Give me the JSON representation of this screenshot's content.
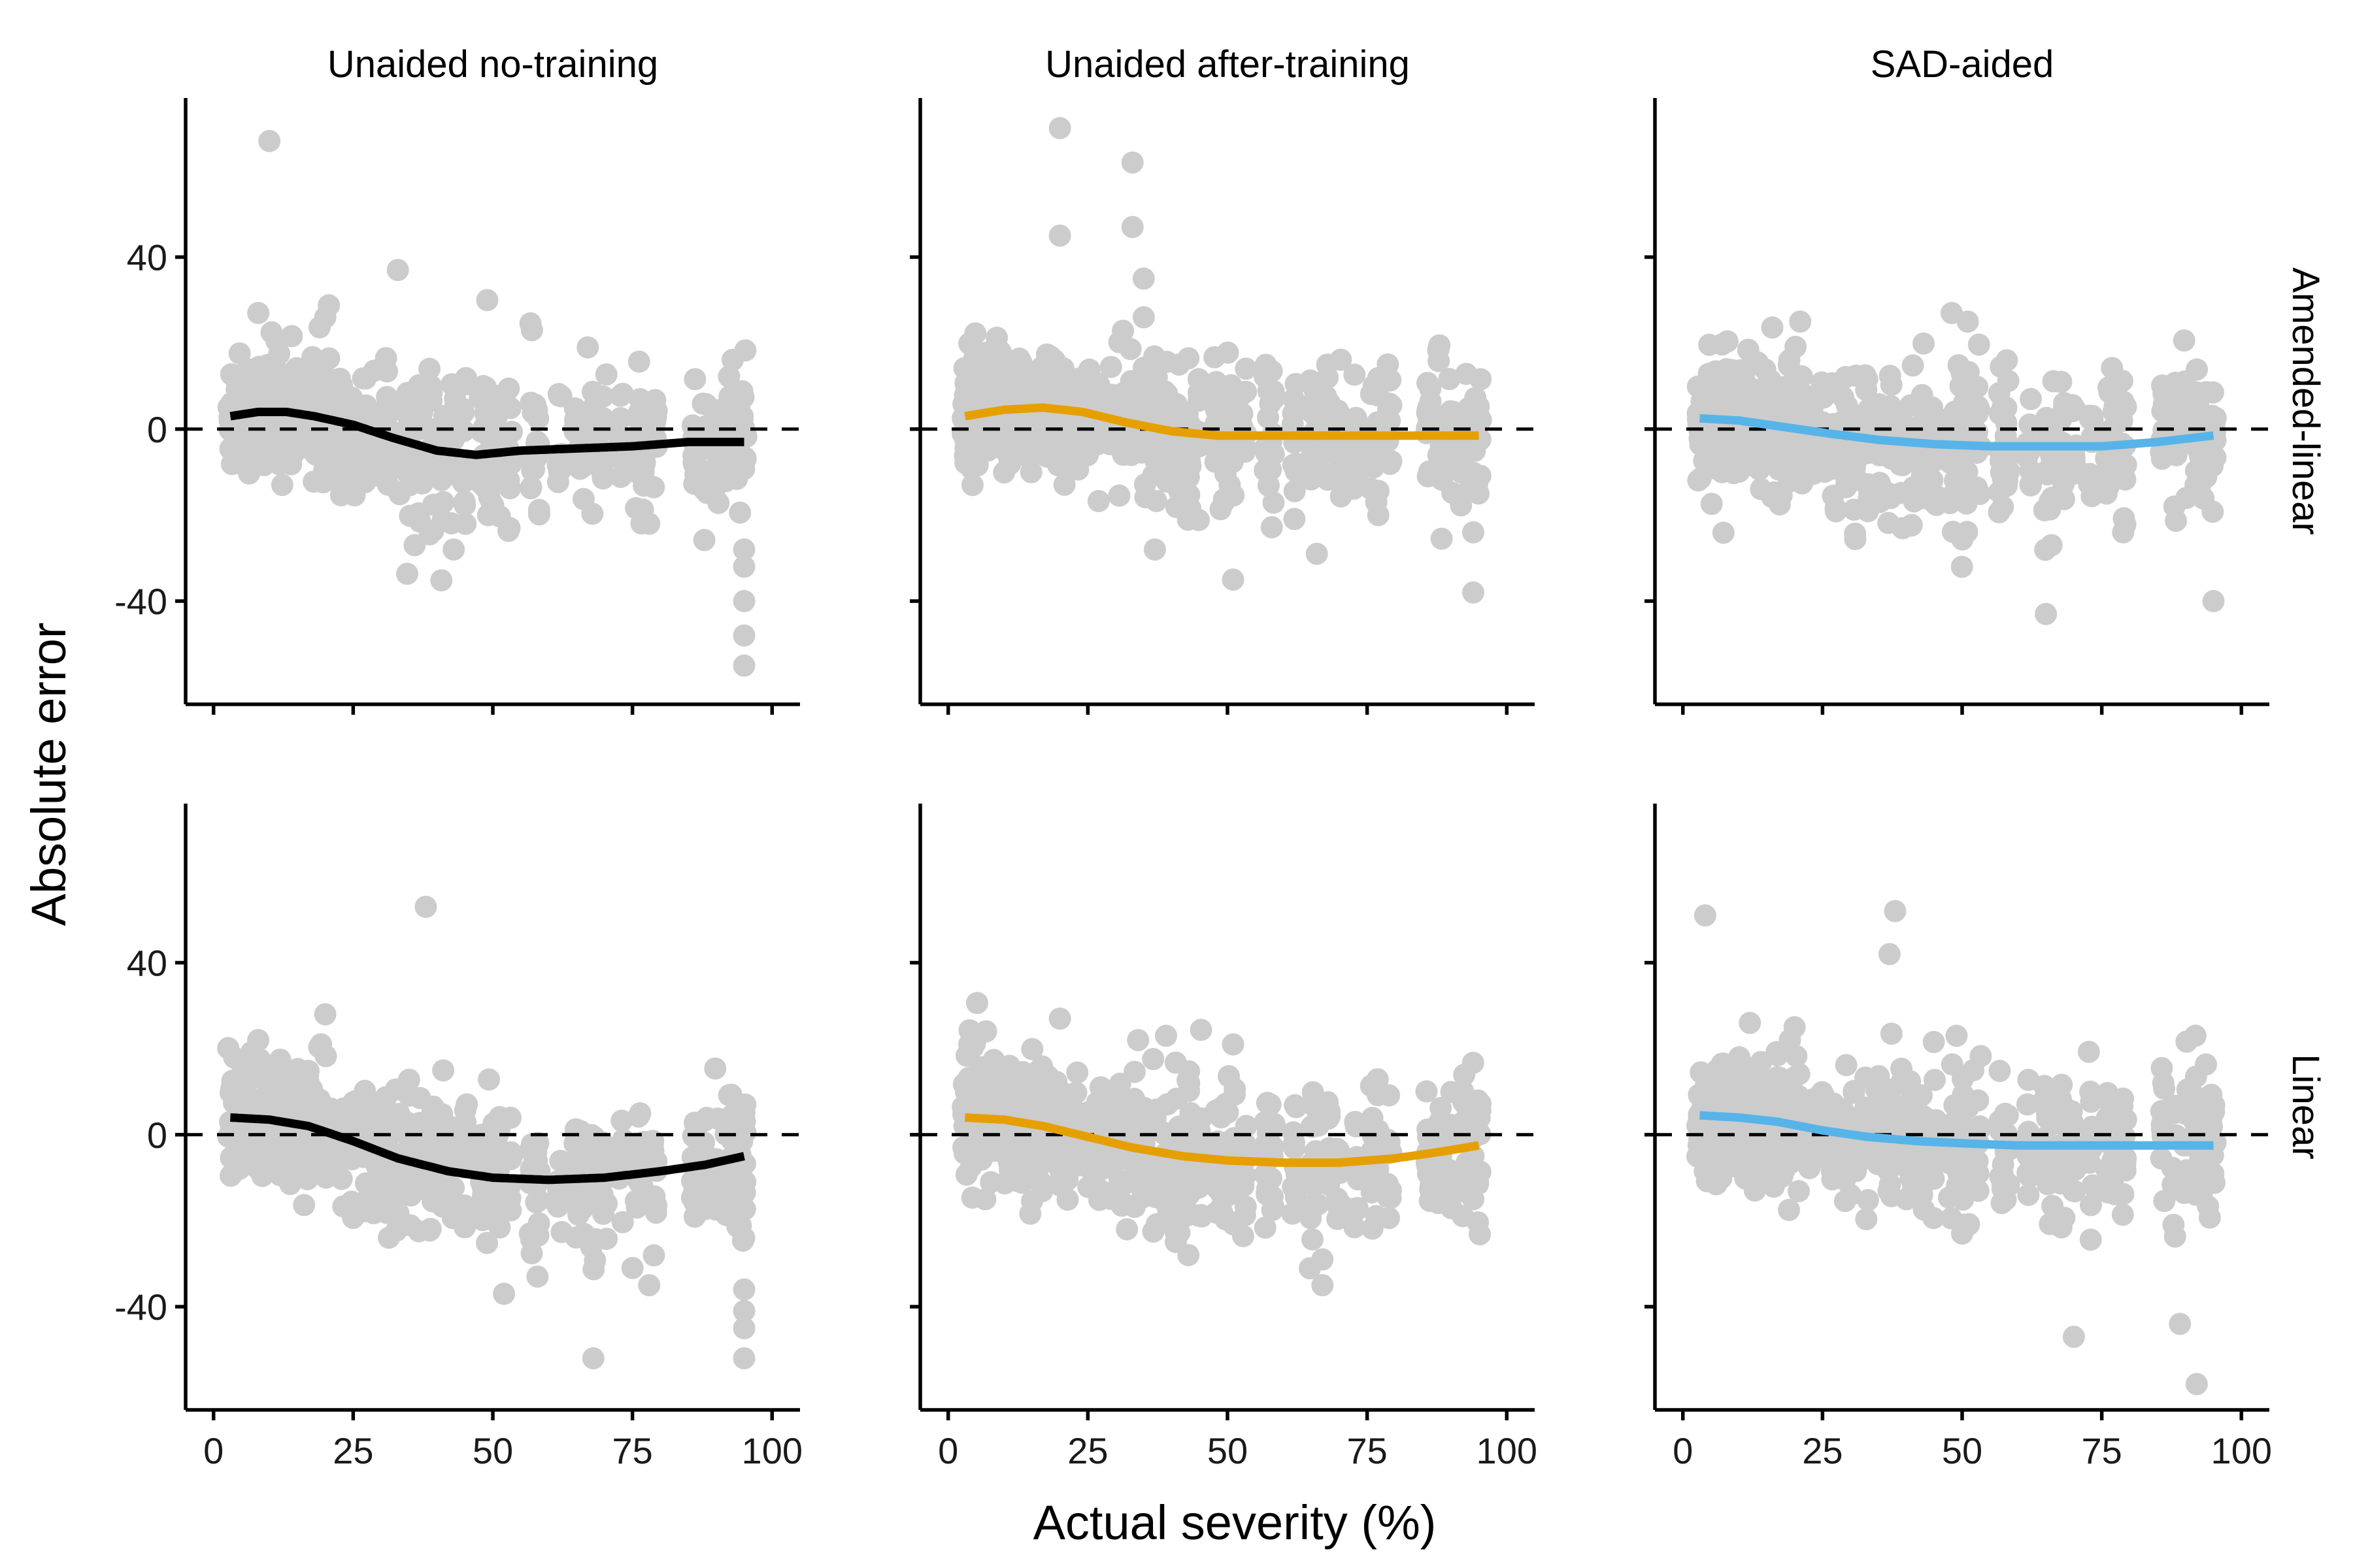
{
  "chart_data": {
    "type": "scatter",
    "facet_columns": [
      "Unaided no-training",
      "Unaided after-training",
      "SAD-aided"
    ],
    "facet_rows": [
      "Amended-linear",
      "Linear"
    ],
    "xlabel": "Actual severity (%)",
    "ylabel": "Absolute error",
    "xlim": [
      -5,
      105
    ],
    "ylim": [
      -64,
      77
    ],
    "x_ticks": [
      0,
      25,
      50,
      75,
      100
    ],
    "y_ticks": [
      -40,
      0,
      40
    ],
    "reference_line_y": 0,
    "grid": false,
    "legend": "none",
    "point_color": "#cccccc",
    "series_colors": [
      "#000000",
      "#E69F00",
      "#56B4E9"
    ],
    "panels": [
      {
        "row": "Amended-linear",
        "column": "Unaided no-training",
        "color": "#000000",
        "smooth": [
          [
            3,
            3
          ],
          [
            8,
            4
          ],
          [
            13,
            4
          ],
          [
            18,
            3
          ],
          [
            25,
            1
          ],
          [
            32,
            -2
          ],
          [
            40,
            -5
          ],
          [
            47,
            -6
          ],
          [
            55,
            -5
          ],
          [
            65,
            -4.5
          ],
          [
            75,
            -4
          ],
          [
            85,
            -3
          ],
          [
            95,
            -3
          ]
        ],
        "outliers": [
          [
            10,
            67
          ],
          [
            33,
            37
          ],
          [
            49,
            30
          ],
          [
            57,
            23
          ],
          [
            67,
            19
          ],
          [
            20,
            26
          ],
          [
            8,
            27
          ],
          [
            36,
            -27
          ],
          [
            43,
            -28
          ],
          [
            53,
            -23
          ],
          [
            95,
            -28
          ],
          [
            95,
            -32
          ],
          [
            95,
            -40
          ],
          [
            95,
            -48
          ],
          [
            95,
            -55
          ],
          [
            78,
            -22
          ]
        ]
      },
      {
        "row": "Amended-linear",
        "column": "Unaided after-training",
        "color": "#E69F00",
        "smooth": [
          [
            3,
            3
          ],
          [
            10,
            4.5
          ],
          [
            17,
            5
          ],
          [
            24,
            4
          ],
          [
            32,
            1.5
          ],
          [
            40,
            -0.5
          ],
          [
            48,
            -1.5
          ],
          [
            58,
            -1.5
          ],
          [
            70,
            -1.5
          ],
          [
            82,
            -1.5
          ],
          [
            95,
            -1.5
          ]
        ],
        "outliers": [
          [
            20,
            70
          ],
          [
            33,
            62
          ],
          [
            20,
            45
          ],
          [
            33,
            47
          ],
          [
            35,
            35
          ],
          [
            35,
            26
          ],
          [
            51,
            -35
          ],
          [
            37,
            -28
          ],
          [
            66,
            -29
          ],
          [
            77,
            -20
          ],
          [
            94,
            -24
          ],
          [
            94,
            -38
          ]
        ]
      },
      {
        "row": "Amended-linear",
        "column": "SAD-aided",
        "color": "#56B4E9",
        "smooth": [
          [
            3,
            2.5
          ],
          [
            10,
            2
          ],
          [
            18,
            0.5
          ],
          [
            26,
            -1
          ],
          [
            35,
            -2.5
          ],
          [
            45,
            -3.5
          ],
          [
            55,
            -4
          ],
          [
            65,
            -4
          ],
          [
            75,
            -4
          ],
          [
            85,
            -3
          ],
          [
            95,
            -1.5
          ]
        ],
        "outliers": [
          [
            51,
            25
          ],
          [
            21,
            25
          ],
          [
            58,
            16
          ],
          [
            66,
            -27
          ],
          [
            65,
            -43
          ],
          [
            95,
            -40
          ],
          [
            88,
            -18
          ],
          [
            50,
            -25
          ]
        ]
      },
      {
        "row": "Linear",
        "column": "Unaided no-training",
        "color": "#000000",
        "smooth": [
          [
            3,
            4
          ],
          [
            10,
            3.5
          ],
          [
            17,
            2
          ],
          [
            25,
            -1.5
          ],
          [
            33,
            -5.5
          ],
          [
            42,
            -8.5
          ],
          [
            50,
            -10
          ],
          [
            60,
            -10.5
          ],
          [
            70,
            -10
          ],
          [
            80,
            -8.5
          ],
          [
            88,
            -7
          ],
          [
            95,
            -5
          ]
        ],
        "outliers": [
          [
            38,
            53
          ],
          [
            20,
            28
          ],
          [
            8,
            22
          ],
          [
            68,
            -52
          ],
          [
            52,
            -37
          ],
          [
            58,
            -33
          ],
          [
            78,
            -35
          ],
          [
            95,
            -24
          ],
          [
            95,
            -36
          ],
          [
            95,
            -41
          ],
          [
            95,
            -45
          ],
          [
            95,
            -52
          ],
          [
            75,
            -31
          ]
        ]
      },
      {
        "row": "Linear",
        "column": "Unaided after-training",
        "color": "#E69F00",
        "smooth": [
          [
            3,
            4
          ],
          [
            10,
            3.5
          ],
          [
            17,
            2
          ],
          [
            25,
            -0.5
          ],
          [
            33,
            -3
          ],
          [
            42,
            -5
          ],
          [
            50,
            -6
          ],
          [
            60,
            -6.5
          ],
          [
            70,
            -6.5
          ],
          [
            80,
            -5.5
          ],
          [
            88,
            -4
          ],
          [
            95,
            -2.5
          ]
        ],
        "outliers": [
          [
            20,
            27
          ],
          [
            34,
            22
          ],
          [
            39,
            23
          ],
          [
            51,
            21
          ],
          [
            32,
            -22
          ],
          [
            43,
            -28
          ],
          [
            67,
            -35
          ],
          [
            67,
            -29
          ],
          [
            94,
            -15
          ]
        ]
      },
      {
        "row": "Linear",
        "column": "SAD-aided",
        "color": "#56B4E9",
        "smooth": [
          [
            3,
            4.5
          ],
          [
            10,
            4
          ],
          [
            17,
            3
          ],
          [
            25,
            1
          ],
          [
            33,
            -0.5
          ],
          [
            42,
            -1.5
          ],
          [
            50,
            -2
          ],
          [
            60,
            -2.5
          ],
          [
            70,
            -2.5
          ],
          [
            82,
            -2.5
          ],
          [
            95,
            -2.5
          ]
        ],
        "outliers": [
          [
            4,
            51
          ],
          [
            38,
            52
          ],
          [
            37,
            42
          ],
          [
            12,
            26
          ],
          [
            20,
            25
          ],
          [
            49,
            23
          ],
          [
            52,
            15
          ],
          [
            70,
            -47
          ],
          [
            89,
            -44
          ],
          [
            92,
            -58
          ],
          [
            50,
            -23
          ],
          [
            40,
            -15
          ],
          [
            30,
            -14
          ]
        ]
      }
    ]
  }
}
